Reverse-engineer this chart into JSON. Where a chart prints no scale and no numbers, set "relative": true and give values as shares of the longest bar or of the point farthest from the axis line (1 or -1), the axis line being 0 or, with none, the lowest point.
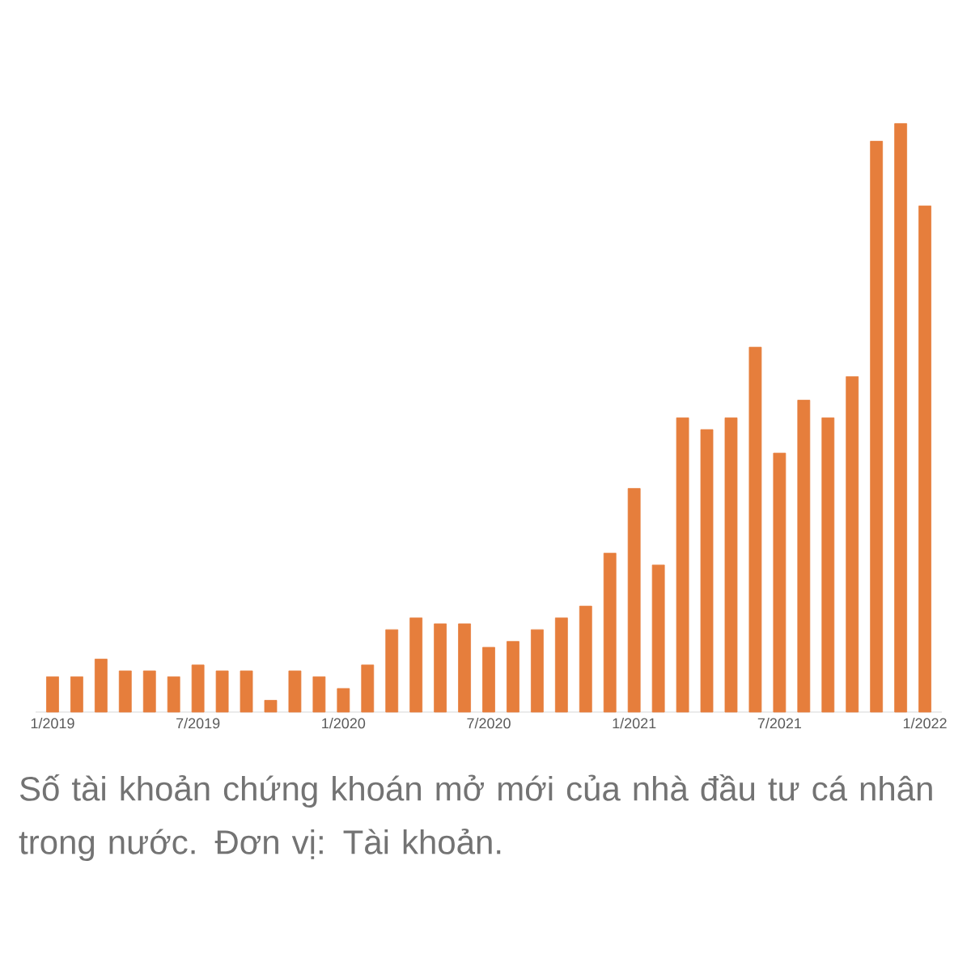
{
  "chart_data": {
    "type": "bar",
    "relative": true,
    "color": "#e67e3c",
    "categories": [
      "1/2019",
      null,
      null,
      null,
      null,
      null,
      "7/2019",
      null,
      null,
      null,
      null,
      null,
      "1/2020",
      null,
      null,
      null,
      null,
      null,
      "7/2020",
      null,
      null,
      null,
      null,
      null,
      "1/2021",
      null,
      null,
      null,
      null,
      null,
      "7/2021",
      null,
      null,
      null,
      null,
      null,
      "1/2022"
    ],
    "values": [
      0.06,
      0.06,
      0.09,
      0.07,
      0.07,
      0.06,
      0.08,
      0.07,
      0.07,
      0.02,
      0.07,
      0.06,
      0.04,
      0.08,
      0.14,
      0.16,
      0.15,
      0.15,
      0.11,
      0.12,
      0.14,
      0.16,
      0.18,
      0.27,
      0.38,
      0.25,
      0.5,
      0.48,
      0.5,
      0.62,
      0.44,
      0.53,
      0.5,
      0.57,
      0.97,
      1,
      0.86
    ],
    "annotations": [
      "Số tài khoản chứng khoán mở mới của nhà đầu tư cá nhân trong nước. Đơn vị: Tài khoản."
    ]
  }
}
